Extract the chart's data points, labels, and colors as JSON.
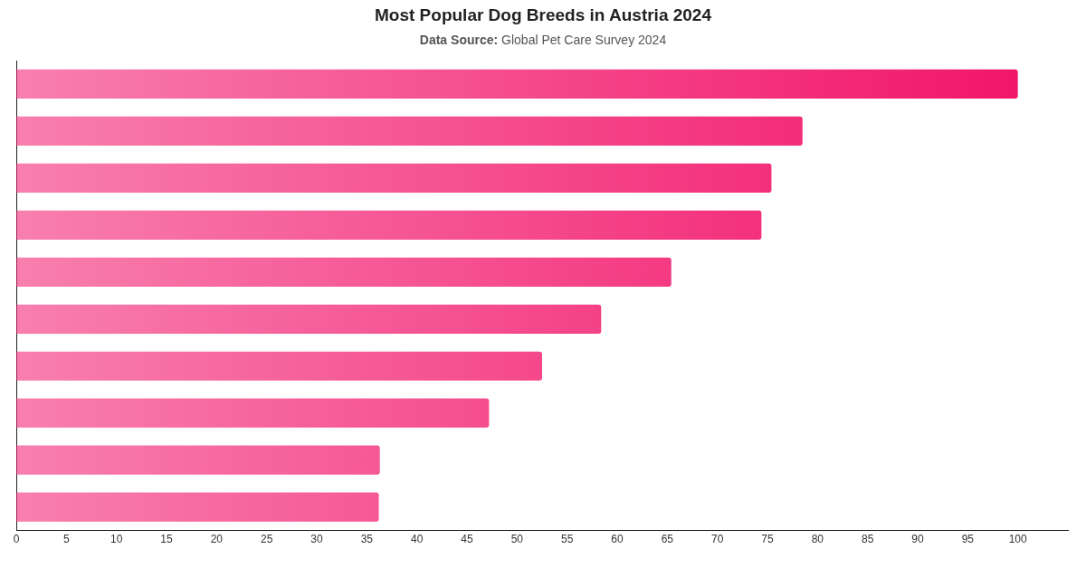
{
  "chart_data": {
    "type": "bar",
    "orientation": "horizontal",
    "title": "Most Popular Dog Breeds in Austria 2024",
    "subtitle": "Data Source: Global Pet Care Survey 2024",
    "categories": [
      null,
      null,
      null,
      null,
      null,
      null,
      null,
      null,
      null,
      null
    ],
    "values": [
      100,
      78.5,
      75.4,
      74.4,
      65.4,
      58.4,
      52.5,
      47.2,
      36.3,
      36.2
    ],
    "color": "#f2166b",
    "xlim": [
      0,
      105
    ],
    "xticks": [
      0,
      5,
      10,
      15,
      20,
      25,
      30,
      35,
      40,
      45,
      50,
      55,
      60,
      65,
      70,
      75,
      80,
      85,
      90,
      95,
      100
    ],
    "grid": false,
    "legend": false
  }
}
